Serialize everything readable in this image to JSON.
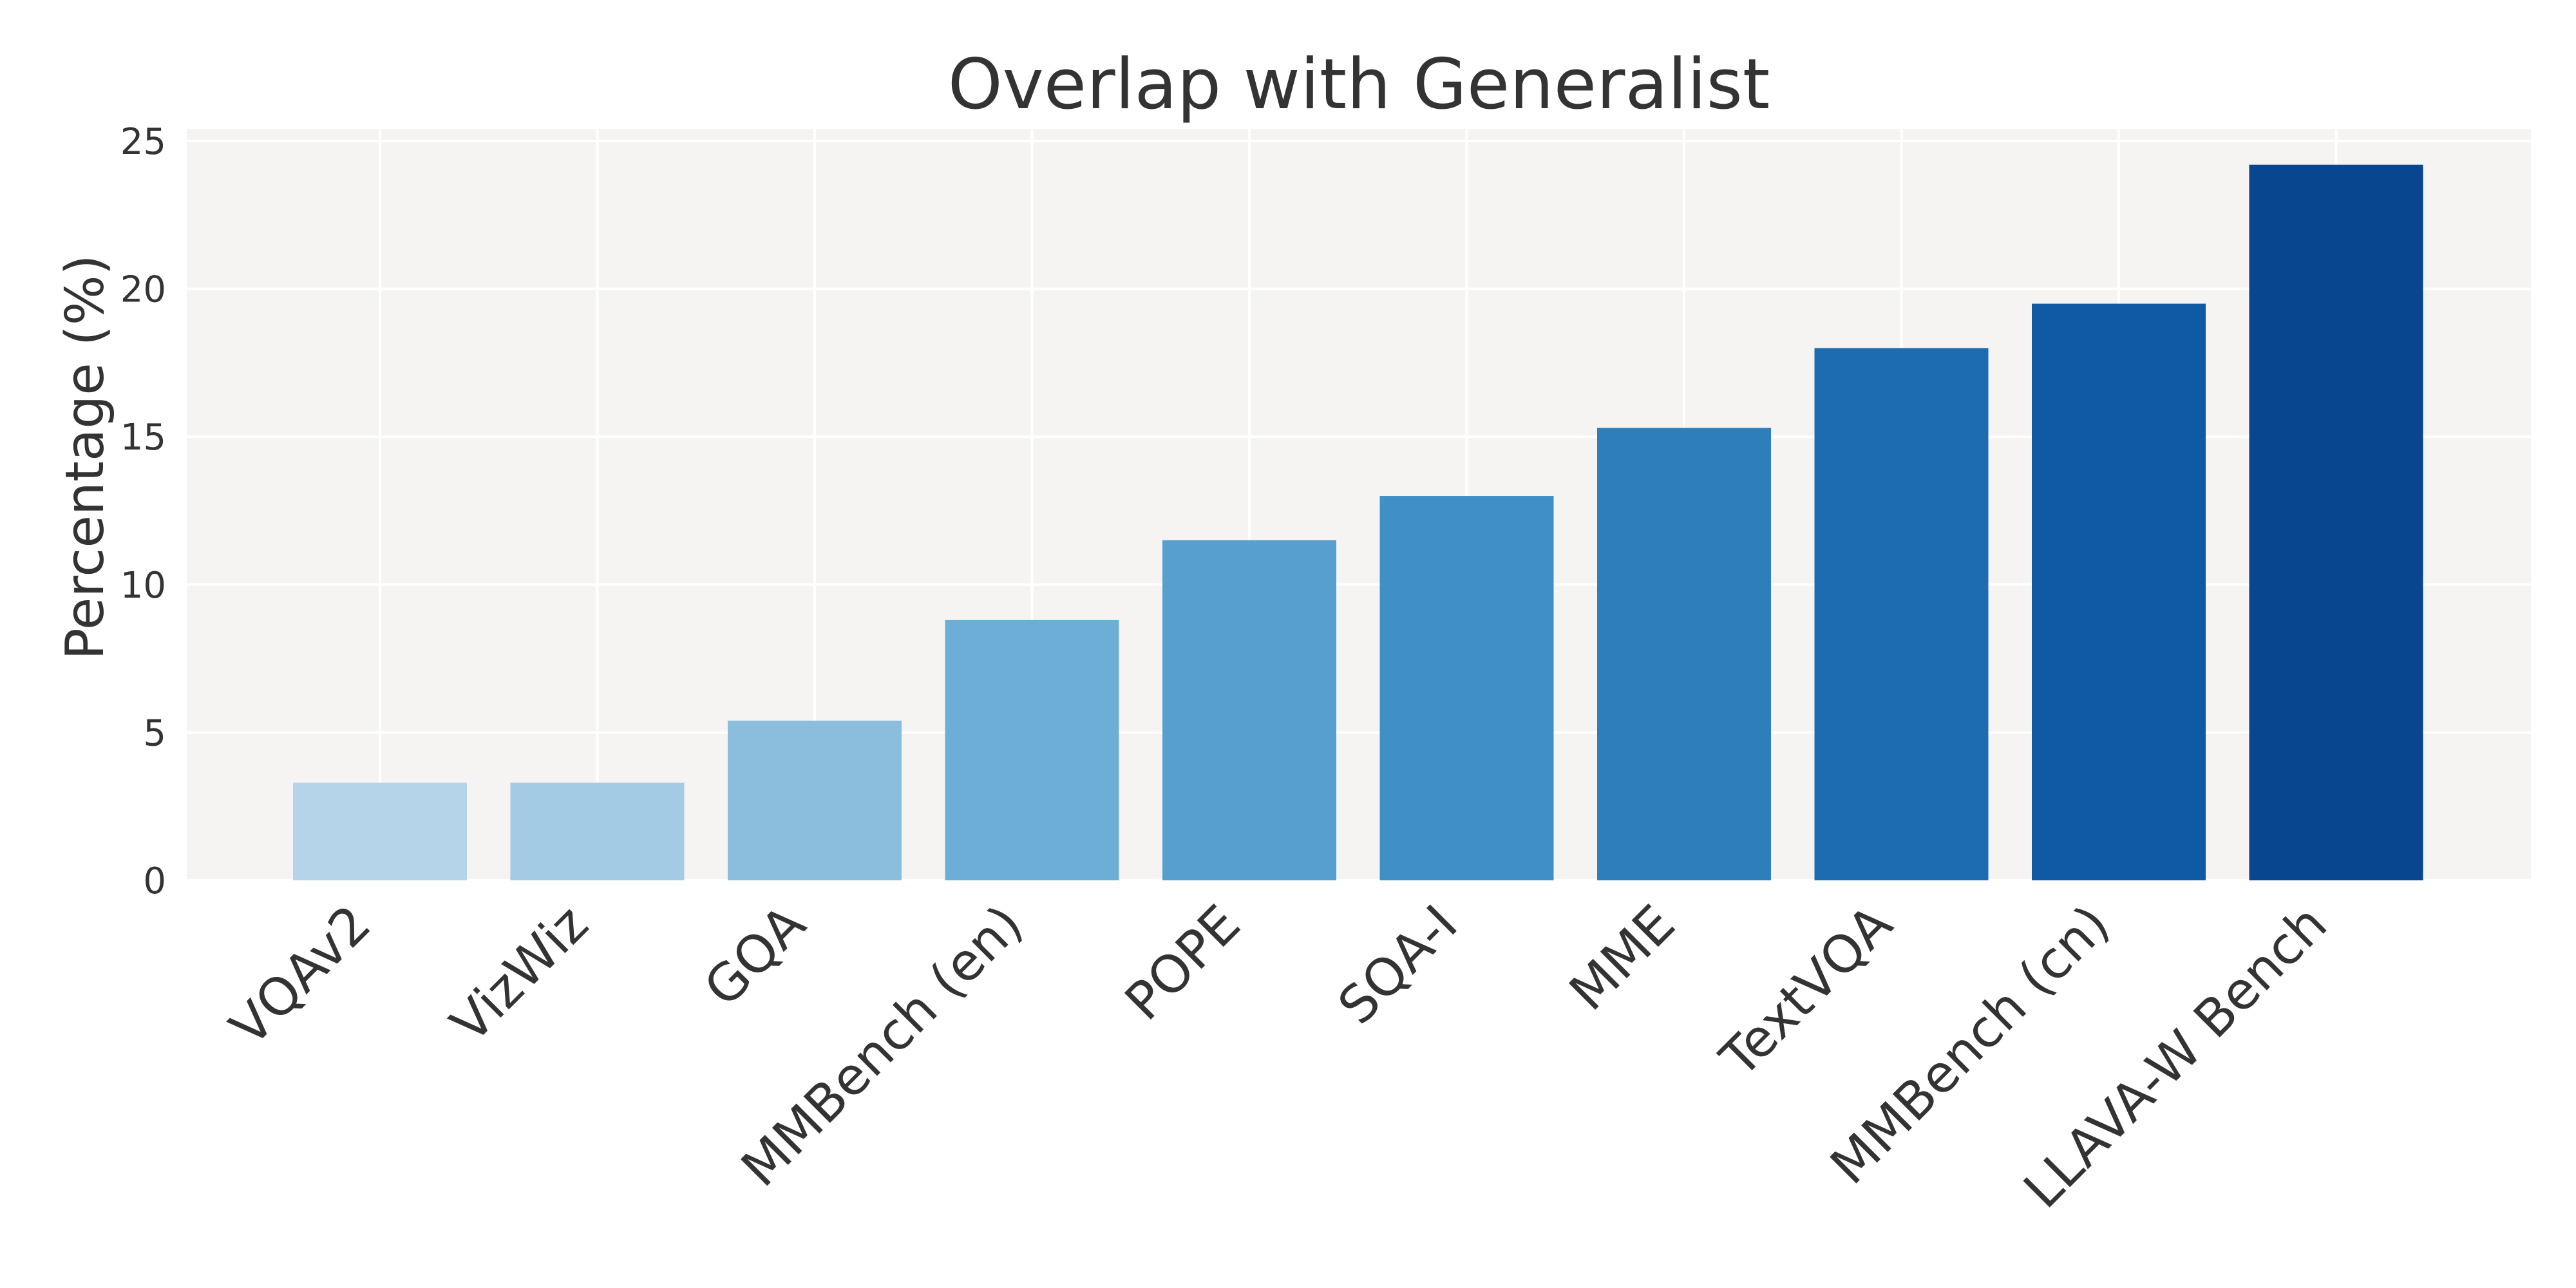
{
  "chart_data": {
    "type": "bar",
    "title": "Overlap with Generalist",
    "xlabel": "",
    "ylabel": "Percentage (%)",
    "categories": [
      "VQAv2",
      "VizWiz",
      "GQA",
      "MMBench (en)",
      "POPE",
      "SQA-I",
      "MME",
      "TextVQA",
      "MMBench (cn)",
      "LLAVA-W Bench"
    ],
    "values": [
      3.3,
      3.3,
      5.4,
      8.8,
      11.5,
      13.0,
      15.3,
      18.0,
      19.5,
      24.2
    ],
    "ylim": [
      0,
      25
    ],
    "yticks": [
      "0",
      "5",
      "10",
      "15",
      "20",
      "25"
    ],
    "colors": [
      "#b5d4e9",
      "#a3cbe3",
      "#8bbedc",
      "#6caed6",
      "#579fce",
      "#4090c5",
      "#2e7ebc",
      "#1d6cb1",
      "#0f5aa3",
      "#08468f"
    ],
    "grid": true,
    "background": "#f5f4f2"
  }
}
